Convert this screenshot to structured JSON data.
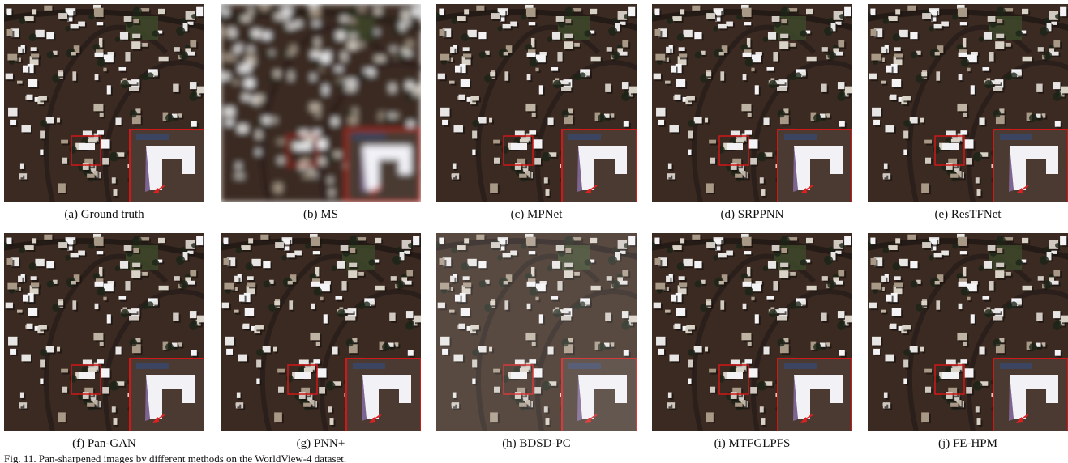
{
  "figure": {
    "panels": [
      {
        "label": "(a) Ground truth"
      },
      {
        "label": "(b) MS"
      },
      {
        "label": "(c) MPNet"
      },
      {
        "label": "(d) SRPPNN"
      },
      {
        "label": "(e) ResTFNet"
      },
      {
        "label": "(f) Pan-GAN"
      },
      {
        "label": "(g) PNN+"
      },
      {
        "label": "(h) BDSD-PC"
      },
      {
        "label": "(i) MTFGLPFS"
      },
      {
        "label": "(j) FE-HPM"
      }
    ],
    "caption": "Fig. 11. Pan-sharpened images by different methods on the WorldView-4 dataset."
  }
}
